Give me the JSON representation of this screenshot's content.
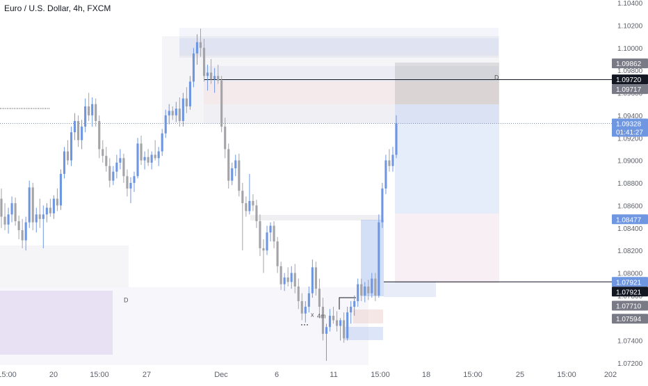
{
  "header": {
    "symbol_title": "Euro / U.S. Dollar, 4h, FXCM"
  },
  "chart_data": {
    "type": "candlestick",
    "title": "Euro / U.S. Dollar, 4h, FXCM",
    "x_tick_labels": [
      "15:00",
      "20",
      "15:00",
      "27",
      "Dec",
      "6",
      "11",
      "15:00",
      "18",
      "15:00",
      "25",
      "15:00",
      "202"
    ],
    "y_tick_labels": [
      1.072,
      1.074,
      1.076,
      1.078,
      1.08,
      1.082,
      1.084,
      1.086,
      1.088,
      1.09,
      1.092,
      1.094,
      1.096,
      1.098,
      1.1,
      1.102,
      1.104
    ],
    "y_tick_text": [
      "1.07200",
      "1.07400",
      "1.07600",
      "1.07800",
      "1.08000",
      "1.08200",
      "1.08400",
      "1.08600",
      "1.08800",
      "1.09000",
      "1.09200",
      "1.09400",
      "1.09600",
      "1.09800",
      "1.10000",
      "1.10200",
      "1.10400"
    ],
    "ylim": [
      1.0718,
      1.1045
    ],
    "price_labels": [
      {
        "text": "1.09862",
        "value": 1.09862,
        "style": "grey"
      },
      {
        "text": "1.09720",
        "value": 1.0972,
        "style": "black"
      },
      {
        "text": "1.09717",
        "value": 1.09717,
        "style": "grey"
      },
      {
        "text": "1.09328",
        "value": 1.09328,
        "style": "blue",
        "sub": "01:41:27"
      },
      {
        "text": "1.08477",
        "value": 1.08477,
        "style": "blue"
      },
      {
        "text": "1.07921",
        "value": 1.07921,
        "style": "blue"
      },
      {
        "text": "1.07921",
        "value": 1.07921,
        "style": "black"
      },
      {
        "text": "1.07710",
        "value": 1.0771,
        "style": "grey"
      },
      {
        "text": "1.07594",
        "value": 1.07594,
        "style": "grey"
      }
    ],
    "annotations": [
      {
        "text": "D",
        "x": 178,
        "value": 1.0774
      },
      {
        "text": "D",
        "x": 711,
        "value": 1.09717
      },
      {
        "text": "x",
        "x": 447,
        "value": 1.0761
      },
      {
        "text": "4m",
        "x": 456,
        "value": 1.076
      }
    ],
    "horizontal_lines": [
      {
        "value": 1.09717,
        "x_start": 293
      },
      {
        "value": 1.07921,
        "x_start": 552
      }
    ],
    "current_price": 1.09328,
    "candles": [
      {
        "o": 1.0866,
        "h": 1.0875,
        "l": 1.084,
        "c": 1.085
      },
      {
        "o": 1.085,
        "h": 1.0862,
        "l": 1.0838,
        "c": 1.0843
      },
      {
        "o": 1.0843,
        "h": 1.0858,
        "l": 1.0835,
        "c": 1.0852
      },
      {
        "o": 1.0852,
        "h": 1.0868,
        "l": 1.0845,
        "c": 1.0862
      },
      {
        "o": 1.0862,
        "h": 1.0867,
        "l": 1.0842,
        "c": 1.0846
      },
      {
        "o": 1.0846,
        "h": 1.0851,
        "l": 1.083,
        "c": 1.0838
      },
      {
        "o": 1.0838,
        "h": 1.0848,
        "l": 1.0822,
        "c": 1.0829
      },
      {
        "o": 1.0829,
        "h": 1.085,
        "l": 1.082,
        "c": 1.0845
      },
      {
        "o": 1.0845,
        "h": 1.0882,
        "l": 1.084,
        "c": 1.0876
      },
      {
        "o": 1.0876,
        "h": 1.088,
        "l": 1.0838,
        "c": 1.0845
      },
      {
        "o": 1.0845,
        "h": 1.0858,
        "l": 1.0836,
        "c": 1.0852
      },
      {
        "o": 1.0852,
        "h": 1.0866,
        "l": 1.084,
        "c": 1.0848
      },
      {
        "o": 1.0848,
        "h": 1.086,
        "l": 1.0822,
        "c": 1.0852
      },
      {
        "o": 1.0852,
        "h": 1.0862,
        "l": 1.0845,
        "c": 1.0858
      },
      {
        "o": 1.0858,
        "h": 1.0866,
        "l": 1.085,
        "c": 1.0853
      },
      {
        "o": 1.0853,
        "h": 1.0869,
        "l": 1.0848,
        "c": 1.0866
      },
      {
        "o": 1.0866,
        "h": 1.0875,
        "l": 1.0855,
        "c": 1.086
      },
      {
        "o": 1.086,
        "h": 1.0892,
        "l": 1.0856,
        "c": 1.0888
      },
      {
        "o": 1.0888,
        "h": 1.0912,
        "l": 1.0884,
        "c": 1.0908
      },
      {
        "o": 1.0908,
        "h": 1.0918,
        "l": 1.0896,
        "c": 1.09
      },
      {
        "o": 1.09,
        "h": 1.093,
        "l": 1.0895,
        "c": 1.0925
      },
      {
        "o": 1.0925,
        "h": 1.0942,
        "l": 1.0918,
        "c": 1.0935
      },
      {
        "o": 1.0935,
        "h": 1.094,
        "l": 1.0912,
        "c": 1.0918
      },
      {
        "o": 1.0918,
        "h": 1.0936,
        "l": 1.091,
        "c": 1.093
      },
      {
        "o": 1.093,
        "h": 1.0955,
        "l": 1.0925,
        "c": 1.0948
      },
      {
        "o": 1.0948,
        "h": 1.096,
        "l": 1.0935,
        "c": 1.094
      },
      {
        "o": 1.094,
        "h": 1.0956,
        "l": 1.093,
        "c": 1.095
      },
      {
        "o": 1.095,
        "h": 1.0955,
        "l": 1.093,
        "c": 1.0935
      },
      {
        "o": 1.0935,
        "h": 1.094,
        "l": 1.0902,
        "c": 1.091
      },
      {
        "o": 1.091,
        "h": 1.0918,
        "l": 1.0898,
        "c": 1.0904
      },
      {
        "o": 1.0904,
        "h": 1.0912,
        "l": 1.089,
        "c": 1.0895
      },
      {
        "o": 1.0895,
        "h": 1.0902,
        "l": 1.0876,
        "c": 1.0882
      },
      {
        "o": 1.0882,
        "h": 1.0895,
        "l": 1.0878,
        "c": 1.089
      },
      {
        "o": 1.089,
        "h": 1.0905,
        "l": 1.0884,
        "c": 1.0898
      },
      {
        "o": 1.0898,
        "h": 1.091,
        "l": 1.0892,
        "c": 1.0902
      },
      {
        "o": 1.0902,
        "h": 1.0906,
        "l": 1.088,
        "c": 1.0886
      },
      {
        "o": 1.0886,
        "h": 1.0892,
        "l": 1.0868,
        "c": 1.0875
      },
      {
        "o": 1.0875,
        "h": 1.0885,
        "l": 1.0862,
        "c": 1.088
      },
      {
        "o": 1.088,
        "h": 1.089,
        "l": 1.0872,
        "c": 1.0886
      },
      {
        "o": 1.0886,
        "h": 1.092,
        "l": 1.0884,
        "c": 1.0915
      },
      {
        "o": 1.0915,
        "h": 1.0922,
        "l": 1.0896,
        "c": 1.09
      },
      {
        "o": 1.09,
        "h": 1.0908,
        "l": 1.0892,
        "c": 1.0903
      },
      {
        "o": 1.0903,
        "h": 1.091,
        "l": 1.0895,
        "c": 1.0898
      },
      {
        "o": 1.0898,
        "h": 1.0908,
        "l": 1.0892,
        "c": 1.0905
      },
      {
        "o": 1.0905,
        "h": 1.0918,
        "l": 1.09,
        "c": 1.0902
      },
      {
        "o": 1.0902,
        "h": 1.0912,
        "l": 1.0895,
        "c": 1.0908
      },
      {
        "o": 1.0908,
        "h": 1.0928,
        "l": 1.0904,
        "c": 1.0924
      },
      {
        "o": 1.0924,
        "h": 1.0945,
        "l": 1.092,
        "c": 1.094
      },
      {
        "o": 1.094,
        "h": 1.095,
        "l": 1.0932,
        "c": 1.0944
      },
      {
        "o": 1.0944,
        "h": 1.0948,
        "l": 1.0936,
        "c": 1.094
      },
      {
        "o": 1.094,
        "h": 1.0952,
        "l": 1.0934,
        "c": 1.0946
      },
      {
        "o": 1.0946,
        "h": 1.0956,
        "l": 1.093,
        "c": 1.0935
      },
      {
        "o": 1.0935,
        "h": 1.096,
        "l": 1.093,
        "c": 1.0955
      },
      {
        "o": 1.0955,
        "h": 1.0965,
        "l": 1.0942,
        "c": 1.0948
      },
      {
        "o": 1.0948,
        "h": 1.0975,
        "l": 1.0945,
        "c": 1.097
      },
      {
        "o": 1.097,
        "h": 1.1,
        "l": 1.0965,
        "c": 1.0995
      },
      {
        "o": 1.0995,
        "h": 1.1012,
        "l": 1.0985,
        "c": 1.1005
      },
      {
        "o": 1.1005,
        "h": 1.1017,
        "l": 1.0992,
        "c": 1.1
      },
      {
        "o": 1.1,
        "h": 1.1008,
        "l": 1.097,
        "c": 1.0975
      },
      {
        "o": 1.0975,
        "h": 1.0985,
        "l": 1.0962,
        "c": 1.0978
      },
      {
        "o": 1.0978,
        "h": 1.099,
        "l": 1.0968,
        "c": 1.0972
      },
      {
        "o": 1.0972,
        "h": 1.0982,
        "l": 1.096,
        "c": 1.0975
      },
      {
        "o": 1.0975,
        "h": 1.0985,
        "l": 1.0968,
        "c": 1.0971
      },
      {
        "o": 1.0971,
        "h": 1.0975,
        "l": 1.0925,
        "c": 1.093
      },
      {
        "o": 1.093,
        "h": 1.0938,
        "l": 1.0902,
        "c": 1.091
      },
      {
        "o": 1.091,
        "h": 1.0915,
        "l": 1.0875,
        "c": 1.0882
      },
      {
        "o": 1.0882,
        "h": 1.0898,
        "l": 1.0878,
        "c": 1.0893
      },
      {
        "o": 1.0893,
        "h": 1.0905,
        "l": 1.0886,
        "c": 1.09
      },
      {
        "o": 1.09,
        "h": 1.0906,
        "l": 1.0868,
        "c": 1.0873
      },
      {
        "o": 1.0873,
        "h": 1.088,
        "l": 1.082,
        "c": 1.0862
      },
      {
        "o": 1.0862,
        "h": 1.0868,
        "l": 1.085,
        "c": 1.0855
      },
      {
        "o": 1.0855,
        "h": 1.0888,
        "l": 1.0852,
        "c": 1.0864
      },
      {
        "o": 1.0864,
        "h": 1.087,
        "l": 1.0855,
        "c": 1.086
      },
      {
        "o": 1.086,
        "h": 1.0865,
        "l": 1.084,
        "c": 1.0846
      },
      {
        "o": 1.0846,
        "h": 1.0852,
        "l": 1.0815,
        "c": 1.0822
      },
      {
        "o": 1.0822,
        "h": 1.083,
        "l": 1.08,
        "c": 1.082
      },
      {
        "o": 1.082,
        "h": 1.0842,
        "l": 1.0816,
        "c": 1.0836
      },
      {
        "o": 1.0836,
        "h": 1.0845,
        "l": 1.0828,
        "c": 1.0842
      },
      {
        "o": 1.0842,
        "h": 1.0846,
        "l": 1.0822,
        "c": 1.0828
      },
      {
        "o": 1.0828,
        "h": 1.0832,
        "l": 1.08,
        "c": 1.0806
      },
      {
        "o": 1.0806,
        "h": 1.081,
        "l": 1.0785,
        "c": 1.079
      },
      {
        "o": 1.079,
        "h": 1.08,
        "l": 1.0784,
        "c": 1.0796
      },
      {
        "o": 1.0796,
        "h": 1.0805,
        "l": 1.0788,
        "c": 1.0792
      },
      {
        "o": 1.0792,
        "h": 1.0806,
        "l": 1.0786,
        "c": 1.08
      },
      {
        "o": 1.08,
        "h": 1.0808,
        "l": 1.0782,
        "c": 1.0788
      },
      {
        "o": 1.0788,
        "h": 1.0795,
        "l": 1.0768,
        "c": 1.0775
      },
      {
        "o": 1.0775,
        "h": 1.0782,
        "l": 1.0758,
        "c": 1.0764
      },
      {
        "o": 1.0764,
        "h": 1.0775,
        "l": 1.0756,
        "c": 1.077
      },
      {
        "o": 1.077,
        "h": 1.0788,
        "l": 1.0765,
        "c": 1.0782
      },
      {
        "o": 1.0782,
        "h": 1.0812,
        "l": 1.0778,
        "c": 1.0805
      },
      {
        "o": 1.0805,
        "h": 1.081,
        "l": 1.078,
        "c": 1.0786
      },
      {
        "o": 1.0786,
        "h": 1.0795,
        "l": 1.0762,
        "c": 1.077
      },
      {
        "o": 1.077,
        "h": 1.0778,
        "l": 1.074,
        "c": 1.0746
      },
      {
        "o": 1.0746,
        "h": 1.0755,
        "l": 1.0722,
        "c": 1.0752
      },
      {
        "o": 1.0752,
        "h": 1.0768,
        "l": 1.0748,
        "c": 1.0762
      },
      {
        "o": 1.0762,
        "h": 1.077,
        "l": 1.0755,
        "c": 1.0758
      },
      {
        "o": 1.0758,
        "h": 1.0766,
        "l": 1.0748,
        "c": 1.0753
      },
      {
        "o": 1.0753,
        "h": 1.076,
        "l": 1.074,
        "c": 1.0758
      },
      {
        "o": 1.0758,
        "h": 1.0765,
        "l": 1.0738,
        "c": 1.0742
      },
      {
        "o": 1.0742,
        "h": 1.077,
        "l": 1.074,
        "c": 1.0765
      },
      {
        "o": 1.0765,
        "h": 1.0775,
        "l": 1.0755,
        "c": 1.077
      },
      {
        "o": 1.077,
        "h": 1.078,
        "l": 1.0762,
        "c": 1.0775
      },
      {
        "o": 1.0775,
        "h": 1.0795,
        "l": 1.077,
        "c": 1.079
      },
      {
        "o": 1.079,
        "h": 1.0795,
        "l": 1.0775,
        "c": 1.078
      },
      {
        "o": 1.078,
        "h": 1.0792,
        "l": 1.0774,
        "c": 1.0788
      },
      {
        "o": 1.0788,
        "h": 1.0794,
        "l": 1.0776,
        "c": 1.0782
      },
      {
        "o": 1.0782,
        "h": 1.08,
        "l": 1.0778,
        "c": 1.0795
      },
      {
        "o": 1.0795,
        "h": 1.08,
        "l": 1.0775,
        "c": 1.078
      },
      {
        "o": 1.078,
        "h": 1.0852,
        "l": 1.0778,
        "c": 1.0845
      },
      {
        "o": 1.0845,
        "h": 1.088,
        "l": 1.084,
        "c": 1.0875
      },
      {
        "o": 1.0875,
        "h": 1.0905,
        "l": 1.087,
        "c": 1.09
      },
      {
        "o": 1.09,
        "h": 1.091,
        "l": 1.089,
        "c": 1.0895
      },
      {
        "o": 1.0895,
        "h": 1.0912,
        "l": 1.089,
        "c": 1.0905
      },
      {
        "o": 1.0905,
        "h": 1.094,
        "l": 1.0902,
        "c": 1.0933
      }
    ]
  }
}
